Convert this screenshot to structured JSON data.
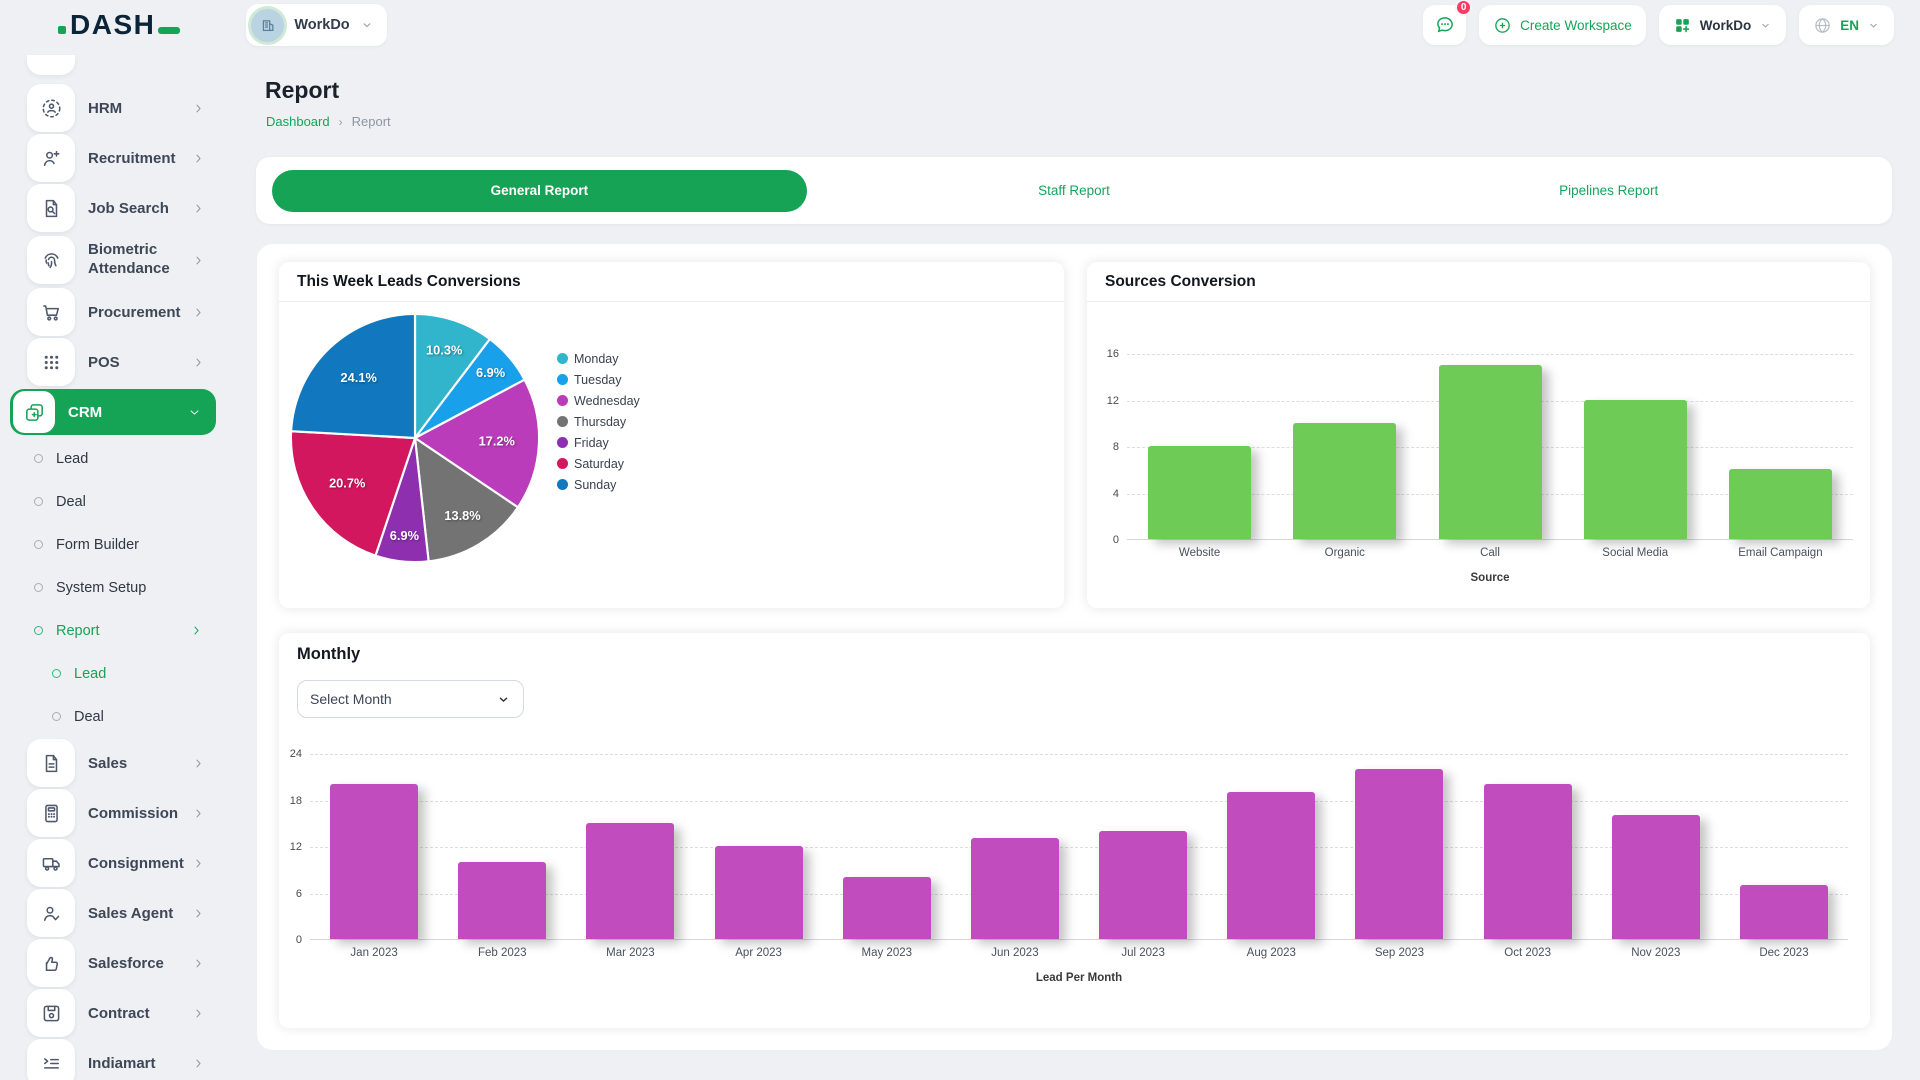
{
  "app": {
    "logo": "DASH"
  },
  "header": {
    "workspace_pill": {
      "label": "WorkDo"
    },
    "chat": {
      "badge": "0"
    },
    "create_workspace": {
      "label": "Create Workspace"
    },
    "app_switcher": {
      "label": "WorkDo"
    },
    "language": {
      "label": "EN"
    }
  },
  "sidebar": {
    "items": [
      {
        "label": "HRM",
        "icon": "hrm-icon",
        "level": 0,
        "chevron": "right"
      },
      {
        "label": "Recruitment",
        "icon": "recruitment-icon",
        "level": 0,
        "chevron": "right"
      },
      {
        "label": "Job Search",
        "icon": "job-search-icon",
        "level": 0,
        "chevron": "right"
      },
      {
        "label": "Biometric Attendance",
        "icon": "biometric-icon",
        "level": 0,
        "chevron": "right",
        "two_line": true
      },
      {
        "label": "Procurement",
        "icon": "procurement-icon",
        "level": 0,
        "chevron": "right"
      },
      {
        "label": "POS",
        "icon": "pos-icon",
        "level": 0,
        "chevron": "right"
      },
      {
        "label": "CRM",
        "icon": "crm-icon",
        "level": 0,
        "chevron": "down",
        "active": true
      },
      {
        "label": "Lead",
        "level": 1
      },
      {
        "label": "Deal",
        "level": 1
      },
      {
        "label": "Form Builder",
        "level": 1
      },
      {
        "label": "System Setup",
        "level": 1
      },
      {
        "label": "Report",
        "level": 1,
        "active": true,
        "chevron": "right"
      },
      {
        "label": "Lead",
        "level": 2,
        "active": true
      },
      {
        "label": "Deal",
        "level": 2
      },
      {
        "label": "Sales",
        "icon": "sales-icon",
        "level": 0,
        "chevron": "right"
      },
      {
        "label": "Commission",
        "icon": "commission-icon",
        "level": 0,
        "chevron": "right"
      },
      {
        "label": "Consignment",
        "icon": "consignment-icon",
        "level": 0,
        "chevron": "right"
      },
      {
        "label": "Sales Agent",
        "icon": "sales-agent-icon",
        "level": 0,
        "chevron": "right"
      },
      {
        "label": "Salesforce",
        "icon": "salesforce-icon",
        "level": 0,
        "chevron": "right"
      },
      {
        "label": "Contract",
        "icon": "contract-icon",
        "level": 0,
        "chevron": "right"
      },
      {
        "label": "Indiamart",
        "icon": "indiamart-icon",
        "level": 0,
        "chevron": "right"
      }
    ]
  },
  "page": {
    "title": "Report",
    "breadcrumb": [
      "Dashboard",
      "Report"
    ]
  },
  "tabs": [
    {
      "label": "General Report",
      "active": true
    },
    {
      "label": "Staff Report",
      "active": false
    },
    {
      "label": "Pipelines Report",
      "active": false
    }
  ],
  "monthly": {
    "select_placeholder": "Select Month"
  },
  "colors": {
    "accent_green": "#17a355",
    "bar_green": "#6ecb55",
    "bar_magenta": "#c04cbe",
    "badge_red": "#fb3b64"
  },
  "chart_data": [
    {
      "type": "pie",
      "title": "This Week Leads Conversions",
      "labels": [
        "Monday",
        "Tuesday",
        "Wednesday",
        "Thursday",
        "Friday",
        "Saturday",
        "Sunday"
      ],
      "values": [
        10.3,
        6.9,
        17.2,
        13.8,
        6.9,
        20.7,
        24.1
      ],
      "unit": "%",
      "colors": [
        "#31b5cc",
        "#18a0ea",
        "#ba3cba",
        "#737373",
        "#8e2fb0",
        "#d3175f",
        "#1178bf"
      ],
      "legend_position": "right"
    },
    {
      "type": "bar",
      "title": "Sources Conversion",
      "categories": [
        "Website",
        "Organic",
        "Call",
        "Social Media",
        "Email Campaign"
      ],
      "values": [
        8,
        10,
        15,
        12,
        6
      ],
      "xlabel": "Source",
      "ylabel": "",
      "ylim": [
        0,
        16
      ],
      "yticks": [
        0,
        4,
        8,
        12,
        16
      ],
      "bar_color": "#6ecb55",
      "grid": true
    },
    {
      "type": "bar",
      "title": "Monthly",
      "categories": [
        "Jan 2023",
        "Feb 2023",
        "Mar 2023",
        "Apr 2023",
        "May 2023",
        "Jun 2023",
        "Jul 2023",
        "Aug 2023",
        "Sep 2023",
        "Oct 2023",
        "Nov 2023",
        "Dec 2023"
      ],
      "values": [
        20,
        10,
        15,
        12,
        8,
        13,
        14,
        19,
        22,
        20,
        16,
        7
      ],
      "xlabel": "Lead Per Month",
      "ylabel": "",
      "ylim": [
        0,
        24
      ],
      "yticks": [
        0,
        6,
        12,
        18,
        24
      ],
      "bar_color": "#c04cbe",
      "grid": true
    }
  ]
}
